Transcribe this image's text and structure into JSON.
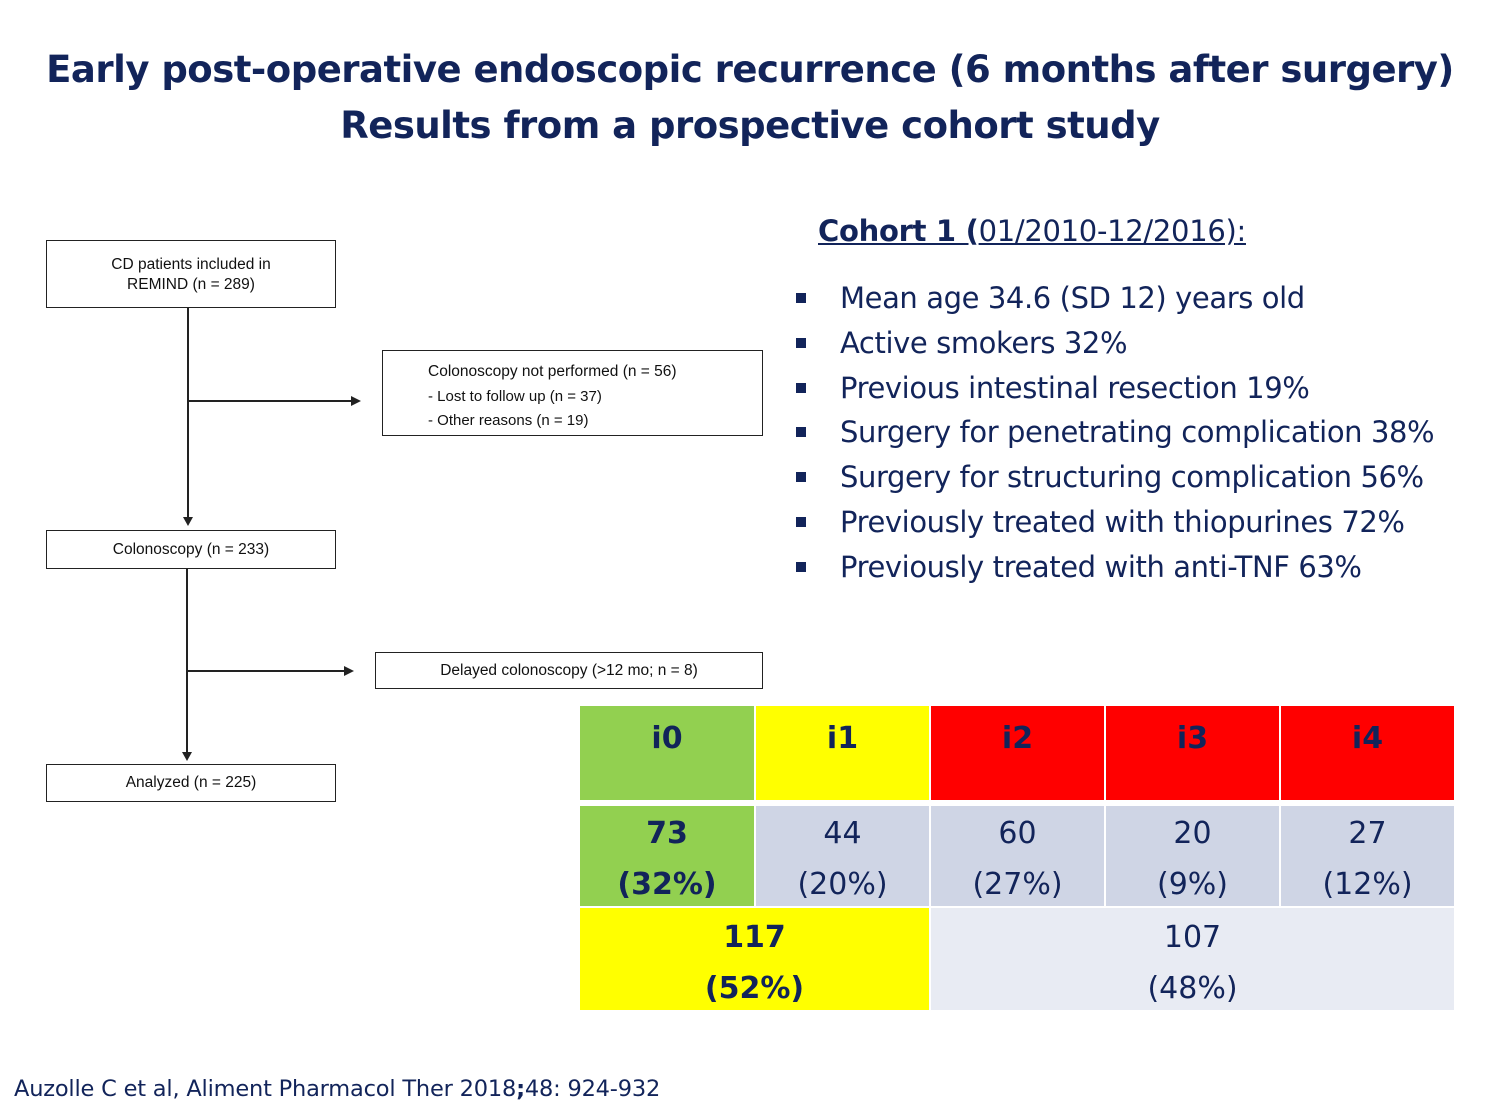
{
  "title": {
    "line1": "Early post-operative endoscopic recurrence (6 months after surgery)",
    "line2": "Results from a prospective cohort study"
  },
  "flowchart": {
    "box_included": {
      "line1": "CD patients included in",
      "line2": "REMIND (n = 289)"
    },
    "box_not_performed": {
      "line1": "Colonoscopy not performed (n = 56)",
      "line2": "- Lost to follow up (n = 37)",
      "line3": "- Other reasons (n = 19)"
    },
    "box_colonoscopy": "Colonoscopy (n = 233)",
    "box_delayed": "Delayed colonoscopy (>12 mo; n = 8)",
    "box_analyzed": "Analyzed (n = 225)"
  },
  "cohort": {
    "heading_bold": "Cohort 1 (",
    "heading_rest": "01/2010-12/2016):",
    "bullets": [
      "Mean age 34.6 (SD 12) years old",
      "Active smokers 32%",
      "Previous intestinal resection 19%",
      "Surgery for penetrating complication 38%",
      "Surgery for structuring complication 56%",
      "Previously treated with thiopurines 72%",
      "Previously treated with anti-TNF 63%"
    ]
  },
  "results_table": {
    "headers": [
      "i0",
      "i1",
      "i2",
      "i3",
      "i4"
    ],
    "counts": [
      "73",
      "44",
      "60",
      "20",
      "27"
    ],
    "percents": [
      "(32%)",
      "(20%)",
      "(27%)",
      "(9%)",
      "(12%)"
    ],
    "group_low": {
      "count": "117",
      "percent": "(52%)"
    },
    "group_high": {
      "count": "107",
      "percent": "(48%)"
    },
    "colors": {
      "i0": "#92d050",
      "i1": "#ffff00",
      "i2": "#ff0000",
      "data": "#cfd5e5",
      "group_high": "#e8ebf3"
    }
  },
  "reference": {
    "pre": "Auzolle C et al, Aliment Pharmacol Ther 2018",
    "semi": ";",
    "post": "48: 924-932"
  }
}
